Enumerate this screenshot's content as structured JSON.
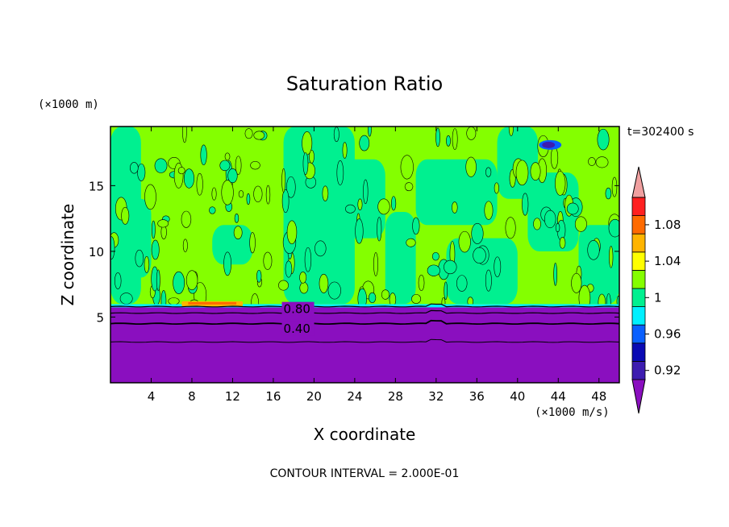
{
  "chart_data": {
    "type": "heatmap",
    "title": "Saturation Ratio",
    "xlabel": "X coordinate",
    "ylabel": "Z coordinate",
    "x_unit": "(×1000 m/s)",
    "y_unit": "(×1000 m)",
    "time_label": "t=302400 s",
    "footer": "CONTOUR INTERVAL = 2.000E-01",
    "xlim": [
      0,
      50
    ],
    "ylim": [
      0,
      19.5
    ],
    "x_ticks": [
      4,
      8,
      12,
      16,
      20,
      24,
      28,
      32,
      36,
      40,
      44,
      48
    ],
    "y_ticks": [
      5,
      10,
      15
    ],
    "colorbar": {
      "levels": [
        0.92,
        0.94,
        0.96,
        0.98,
        1.0,
        1.02,
        1.04,
        1.06,
        1.08,
        1.1
      ],
      "tick_labels": [
        "0.92",
        "0.96",
        "1",
        "1.04",
        "1.08"
      ],
      "colors": [
        "#8a0fbf",
        "#3d1cb0",
        "#0a0ab4",
        "#0a60ff",
        "#00f0ff",
        "#00f090",
        "#84ff00",
        "#ffff00",
        "#ffb400",
        "#ff6a00",
        "#ff2020",
        "#f0a0a0"
      ]
    },
    "contour_labels": [
      {
        "text": "0.80",
        "x": 17.0,
        "y": 5.6
      },
      {
        "text": "0.40",
        "x": 17.0,
        "y": 4.1
      }
    ],
    "boundary_height": 5.8,
    "features": [
      {
        "value": 1.06,
        "x": [
          7,
          13
        ],
        "z": [
          5.8,
          6.2
        ]
      },
      {
        "value": 0.94,
        "x": [
          42.2,
          44.2
        ],
        "z": [
          17.8,
          18.4
        ]
      }
    ]
  }
}
